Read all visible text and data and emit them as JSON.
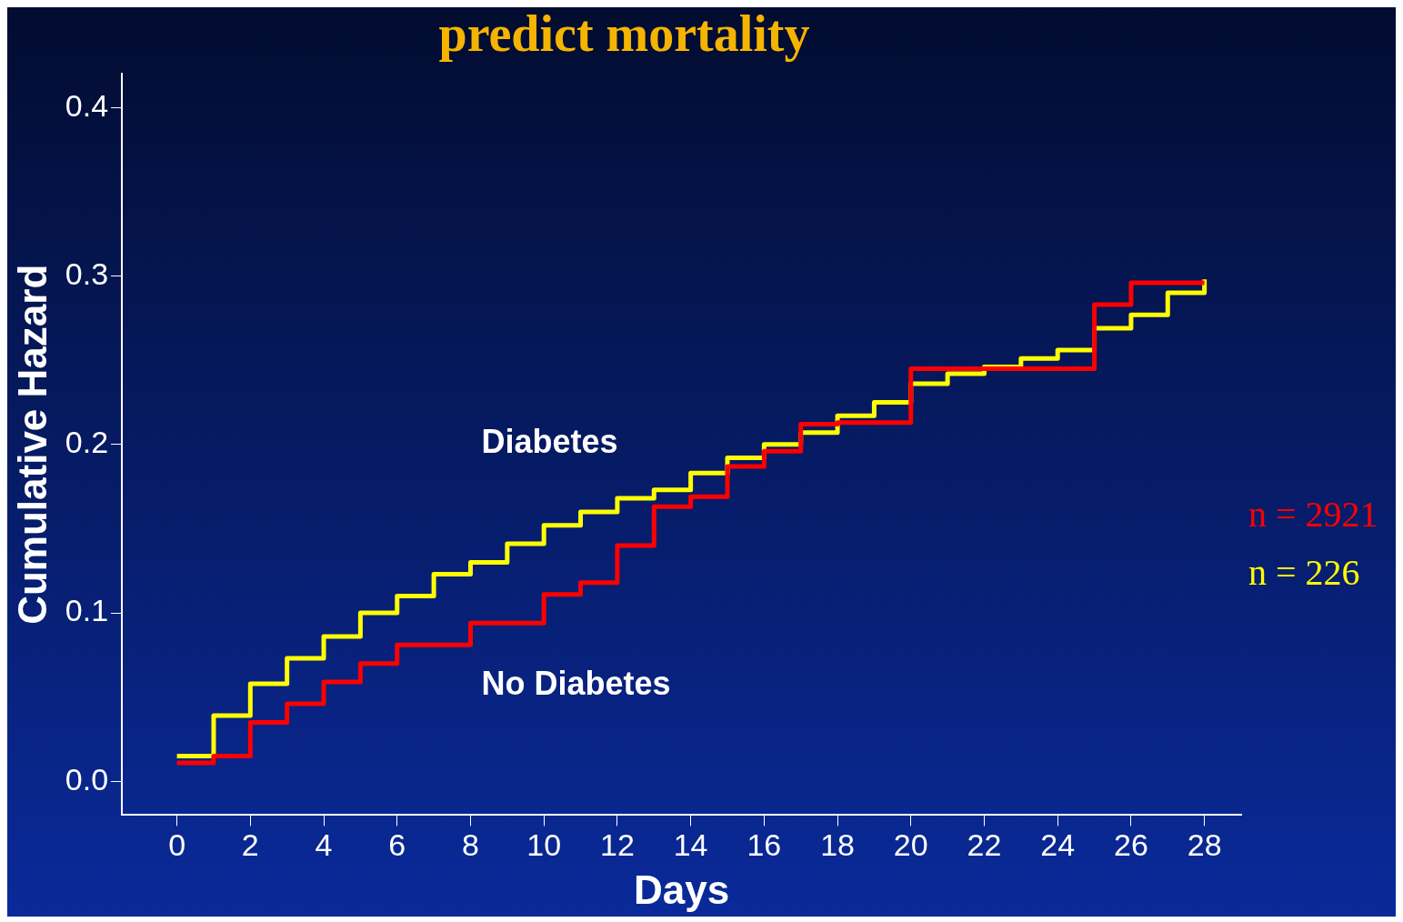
{
  "chart_data": {
    "type": "step",
    "title": "predict mortality",
    "xlabel": "Days",
    "ylabel": "Cumulative Hazard",
    "x": [
      0,
      1,
      2,
      3,
      4,
      5,
      6,
      7,
      8,
      9,
      10,
      11,
      12,
      13,
      14,
      15,
      16,
      17,
      18,
      19,
      20,
      21,
      22,
      23,
      24,
      25,
      26,
      27,
      28
    ],
    "series": [
      {
        "name": "No Diabetes",
        "color": "#ff0000",
        "values": [
          0.011,
          0.015,
          0.035,
          0.046,
          0.059,
          0.07,
          0.081,
          0.081,
          0.094,
          0.094,
          0.111,
          0.118,
          0.14,
          0.163,
          0.169,
          0.187,
          0.196,
          0.212,
          0.213,
          0.213,
          0.245,
          0.245,
          0.245,
          0.245,
          0.245,
          0.283,
          0.296,
          0.296,
          0.296
        ]
      },
      {
        "name": "Diabetes",
        "color": "#ffff00",
        "values": [
          0.015,
          0.039,
          0.058,
          0.073,
          0.086,
          0.1,
          0.11,
          0.123,
          0.13,
          0.141,
          0.152,
          0.16,
          0.168,
          0.173,
          0.183,
          0.192,
          0.2,
          0.207,
          0.217,
          0.225,
          0.236,
          0.242,
          0.246,
          0.251,
          0.256,
          0.269,
          0.277,
          0.29,
          0.298
        ]
      }
    ],
    "annotations": [
      "n = 2921",
      "n = 226"
    ],
    "xlim": [
      -1.5,
      29
    ],
    "xticks": [
      0,
      2,
      4,
      6,
      8,
      10,
      12,
      14,
      16,
      18,
      20,
      22,
      24,
      26,
      28
    ],
    "ylim": [
      -0.02,
      0.42
    ],
    "yticks": [
      {
        "value": 0,
        "label": "0.0"
      },
      {
        "value": 0.1,
        "label": "0.1"
      },
      {
        "value": 0.2,
        "label": "0.2"
      },
      {
        "value": 0.3,
        "label": "0.3"
      },
      {
        "value": 0.4,
        "label": "0.4"
      }
    ],
    "grid": false,
    "legend": false,
    "marker": "none",
    "line_style": "solid"
  }
}
